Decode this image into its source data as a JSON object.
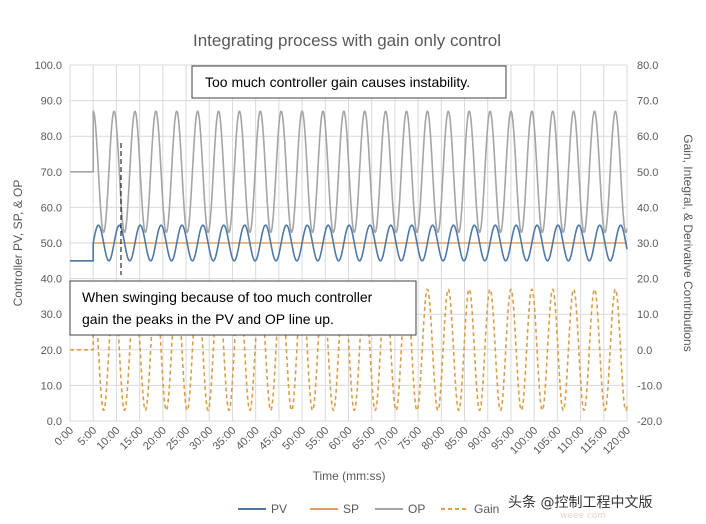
{
  "chart_data": {
    "type": "line",
    "title": "Integrating process with gain only control",
    "xlabel": "Time (mm:ss)",
    "ylabel_left": "Controller PV, SP, & OP",
    "ylabel_right": "Gain, Integral, & Derivative Contributions",
    "x_range_seconds": [
      0,
      7200
    ],
    "x_tick_labels": [
      "0:00",
      "5:00",
      "10:00",
      "15:00",
      "20:00",
      "25:00",
      "30:00",
      "35:00",
      "40:00",
      "45:00",
      "50:00",
      "55:00",
      "60:00",
      "65:00",
      "70:00",
      "75:00",
      "80:00",
      "85:00",
      "90:00",
      "95:00",
      "100:00",
      "105:00",
      "110:00",
      "115:00",
      "120:00"
    ],
    "ylim_left": [
      0,
      100
    ],
    "y_tick_labels_left": [
      "0.0",
      "10.0",
      "20.0",
      "30.0",
      "40.0",
      "50.0",
      "60.0",
      "70.0",
      "80.0",
      "90.0",
      "100.0"
    ],
    "ylim_right": [
      -20,
      80
    ],
    "y_tick_labels_right": [
      "-20.0",
      "-10.0",
      "0.0",
      "10.0",
      "20.0",
      "30.0",
      "40.0",
      "50.0",
      "60.0",
      "70.0",
      "80.0"
    ],
    "grid": true,
    "legend_position": "bottom",
    "step_time_seconds": 300,
    "oscillation_period_seconds": 270,
    "series": [
      {
        "name": "PV",
        "axis": "left",
        "color": "#4e79a7",
        "style": "solid",
        "initial": 45.0,
        "center": 50.0,
        "amplitude": 5.0
      },
      {
        "name": "SP",
        "axis": "left",
        "color": "#e0a060",
        "style": "solid",
        "initial": 45.0,
        "final": 50.0
      },
      {
        "name": "OP",
        "axis": "left",
        "color": "#a5a5a5",
        "style": "solid",
        "initial": 70.0,
        "center": 70.0,
        "amplitude": 17.0
      },
      {
        "name": "Gain",
        "axis": "right",
        "color": "#d9a04a",
        "style": "dashed",
        "initial": 0.0,
        "center": 0.0,
        "amplitude": 17.0
      }
    ],
    "annotations": [
      {
        "text": "Too much controller gain causes instability."
      },
      {
        "text": "When swinging because of too much controller gain the peaks in the PV and OP line up."
      }
    ]
  },
  "annotations": {
    "top_line1": "Too much controller gain causes instability.",
    "bottom_line1": "When swinging because of too much controller",
    "bottom_line2": "gain the peaks in the PV and OP line up."
  },
  "watermark": {
    "text": "头条 @控制工程中文版",
    "faint": "weee com"
  }
}
